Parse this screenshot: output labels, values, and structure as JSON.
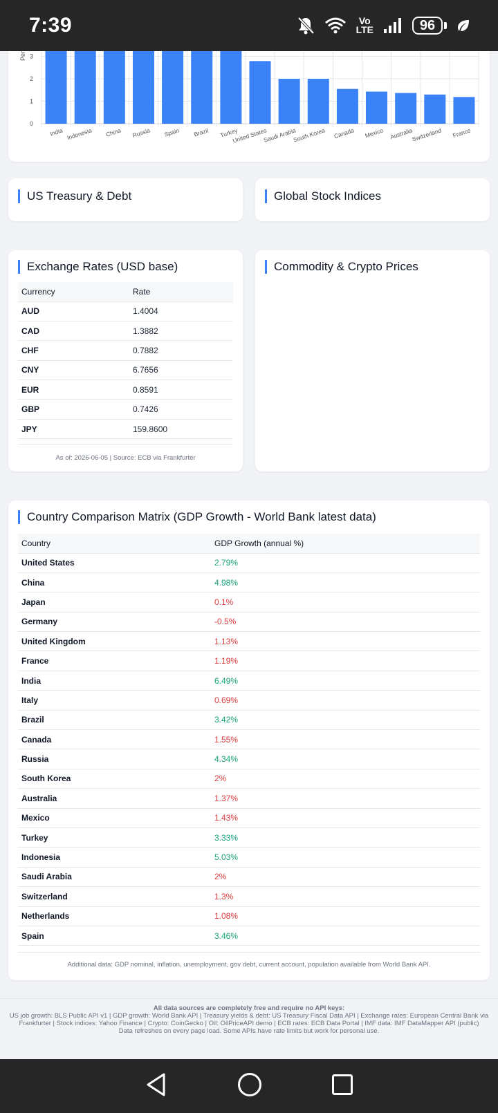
{
  "status": {
    "time": "7:39",
    "volte_top": "Vo",
    "volte_bottom": "LTE",
    "battery": "96"
  },
  "chart_data": {
    "type": "bar",
    "categories": [
      "India",
      "Indonesia",
      "China",
      "Russia",
      "Spain",
      "Brazil",
      "Turkey",
      "United States",
      "Saudi Arabia",
      "South Korea",
      "Canada",
      "Mexico",
      "Australia",
      "Switzerland",
      "France"
    ],
    "values": [
      6.49,
      5.03,
      4.98,
      4.34,
      3.46,
      3.42,
      3.33,
      2.79,
      2.0,
      2.0,
      1.55,
      1.43,
      1.37,
      1.3,
      1.19
    ],
    "ylabel": "Per",
    "y_ticks": [
      "0",
      "1",
      "2",
      "3"
    ],
    "ylim": [
      0,
      7
    ],
    "grid": true,
    "bar_color": "#3b82f6"
  },
  "treasury": {
    "title": "US Treasury & Debt"
  },
  "stocks": {
    "title": "Global Stock Indices"
  },
  "fx": {
    "title": "Exchange Rates (USD base)",
    "headers": [
      "Currency",
      "Rate"
    ],
    "rows": [
      {
        "currency": "AUD",
        "rate": "1.4004"
      },
      {
        "currency": "CAD",
        "rate": "1.3882"
      },
      {
        "currency": "CHF",
        "rate": "0.7882"
      },
      {
        "currency": "CNY",
        "rate": "6.7656"
      },
      {
        "currency": "EUR",
        "rate": "0.8591"
      },
      {
        "currency": "GBP",
        "rate": "0.7426"
      },
      {
        "currency": "JPY",
        "rate": "159.8600"
      }
    ],
    "footnote": "As of: 2026-06-05 | Source: ECB via Frankfurter"
  },
  "commodity": {
    "title": "Commodity & Crypto Prices"
  },
  "matrix": {
    "title": "Country Comparison Matrix (GDP Growth - World Bank latest data)",
    "headers": [
      "Country",
      "GDP Growth (annual %)"
    ],
    "rows": [
      {
        "country": "United States",
        "growth": "2.79%",
        "positive": true
      },
      {
        "country": "China",
        "growth": "4.98%",
        "positive": true
      },
      {
        "country": "Japan",
        "growth": "0.1%",
        "positive": false
      },
      {
        "country": "Germany",
        "growth": "-0.5%",
        "positive": false
      },
      {
        "country": "United Kingdom",
        "growth": "1.13%",
        "positive": false
      },
      {
        "country": "France",
        "growth": "1.19%",
        "positive": false
      },
      {
        "country": "India",
        "growth": "6.49%",
        "positive": true
      },
      {
        "country": "Italy",
        "growth": "0.69%",
        "positive": false
      },
      {
        "country": "Brazil",
        "growth": "3.42%",
        "positive": true
      },
      {
        "country": "Canada",
        "growth": "1.55%",
        "positive": false
      },
      {
        "country": "Russia",
        "growth": "4.34%",
        "positive": true
      },
      {
        "country": "South Korea",
        "growth": "2%",
        "positive": false
      },
      {
        "country": "Australia",
        "growth": "1.37%",
        "positive": false
      },
      {
        "country": "Mexico",
        "growth": "1.43%",
        "positive": false
      },
      {
        "country": "Turkey",
        "growth": "3.33%",
        "positive": true
      },
      {
        "country": "Indonesia",
        "growth": "5.03%",
        "positive": true
      },
      {
        "country": "Saudi Arabia",
        "growth": "2%",
        "positive": false
      },
      {
        "country": "Switzerland",
        "growth": "1.3%",
        "positive": false
      },
      {
        "country": "Netherlands",
        "growth": "1.08%",
        "positive": false
      },
      {
        "country": "Spain",
        "growth": "3.46%",
        "positive": true
      }
    ],
    "footnote": "Additional data: GDP nominal, inflation, unemployment, gov debt, current account, population available from World Bank API."
  },
  "footer": {
    "heading": "All data sources are completely free and require no API keys:",
    "sources": "US job growth: BLS Public API v1 | GDP growth: World Bank API | Treasury yields & debt: US Treasury Fiscal Data API | Exchange rates: European Central Bank via Frankfurter | Stock indices: Yahoo Finance | Crypto: CoinGecko | Oil: OilPriceAPI demo | ECB rates: ECB Data Portal | IMF data: IMF DataMapper API (public)",
    "refresh": "Data refreshes on every page load. Some APIs have rate limits but work for personal use."
  },
  "colors": {
    "accent": "#3b82f6",
    "positive": "#16a37a",
    "negative": "#dc3b3b"
  }
}
